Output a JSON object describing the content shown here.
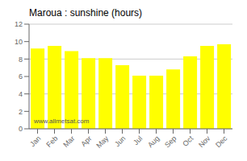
{
  "chart_data": {
    "type": "bar",
    "title": "Maroua : sunshine (hours)",
    "categories": [
      "Jan",
      "Feb",
      "Mar",
      "Apr",
      "May",
      "Jun",
      "Jul",
      "Aug",
      "Sep",
      "Oct",
      "Nov",
      "Dec"
    ],
    "values": [
      9.2,
      9.5,
      8.9,
      8.1,
      8.1,
      7.3,
      6.1,
      6.1,
      6.8,
      8.3,
      9.5,
      9.7
    ],
    "color": "#FFFF00",
    "ylim": [
      0,
      12
    ],
    "yticks": [
      0,
      2,
      4,
      6,
      8,
      10,
      12
    ],
    "grid": true,
    "annotations": [
      "www.allmetsat.com"
    ]
  }
}
